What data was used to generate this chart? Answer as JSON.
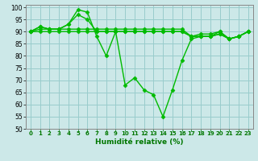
{
  "x": [
    0,
    1,
    2,
    3,
    4,
    5,
    6,
    7,
    8,
    9,
    10,
    11,
    12,
    13,
    14,
    15,
    16,
    17,
    18,
    19,
    20,
    21,
    22,
    23
  ],
  "line_main": [
    90,
    92,
    91,
    91,
    93,
    99,
    98,
    88,
    80,
    90,
    68,
    71,
    66,
    64,
    55,
    66,
    78,
    87,
    88,
    88,
    90,
    87,
    88,
    90
  ],
  "line2": [
    90,
    92,
    91,
    91,
    93,
    97,
    95,
    90,
    90,
    90,
    90,
    90,
    90,
    90,
    90,
    90,
    90,
    88,
    89,
    89,
    90,
    87,
    88,
    90
  ],
  "line3": [
    90,
    91,
    91,
    91,
    91,
    91,
    91,
    91,
    91,
    91,
    91,
    91,
    91,
    91,
    91,
    91,
    91,
    88,
    88,
    88,
    89,
    87,
    88,
    90
  ],
  "line4": [
    90,
    90,
    90,
    90,
    90,
    90,
    90,
    90,
    90,
    90,
    90,
    90,
    90,
    90,
    90,
    90,
    90,
    88,
    88,
    88,
    89,
    87,
    88,
    90
  ],
  "color": "#00bb00",
  "bg_color": "#cce8e8",
  "grid_color": "#99cccc",
  "xlabel": "Humidité relative (%)",
  "xlabel_color": "#007700",
  "ylim": [
    50,
    101
  ],
  "yticks": [
    50,
    55,
    60,
    65,
    70,
    75,
    80,
    85,
    90,
    95,
    100
  ],
  "xtick_labels": [
    "0",
    "1",
    "2",
    "3",
    "4",
    "5",
    "6",
    "7",
    "8",
    "9",
    "10",
    "11",
    "12",
    "13",
    "14",
    "15",
    "16",
    "17",
    "18",
    "19",
    "20",
    "21",
    "22",
    "23"
  ],
  "marker": "D",
  "markersize": 2.5,
  "linewidth": 1.0
}
